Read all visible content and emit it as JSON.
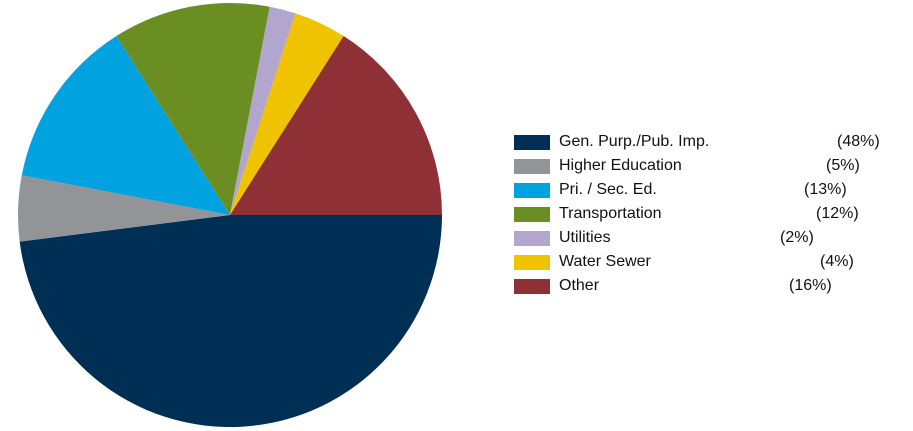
{
  "chart_data": {
    "type": "pie",
    "title": "",
    "legend_position": "right",
    "slices": [
      {
        "label": "Gen. Purp./Pub. Imp.",
        "value": 48,
        "display": "(48%)",
        "color": "#002F56"
      },
      {
        "label": "Higher Education",
        "value": 5,
        "display": "(5%)",
        "color": "#929497"
      },
      {
        "label": "Pri. / Sec. Ed.",
        "value": 13,
        "display": "(13%)",
        "color": "#00A3E0"
      },
      {
        "label": "Transportation",
        "value": 12,
        "display": "(12%)",
        "color": "#6B8E23"
      },
      {
        "label": "Utilities",
        "value": 2,
        "display": "(2%)",
        "color": "#B3A6CE"
      },
      {
        "label": "Water Sewer",
        "value": 4,
        "display": "(4%)",
        "color": "#F0C300"
      },
      {
        "label": "Other",
        "value": 16,
        "display": "(16%)",
        "color": "#8E3036"
      }
    ]
  }
}
